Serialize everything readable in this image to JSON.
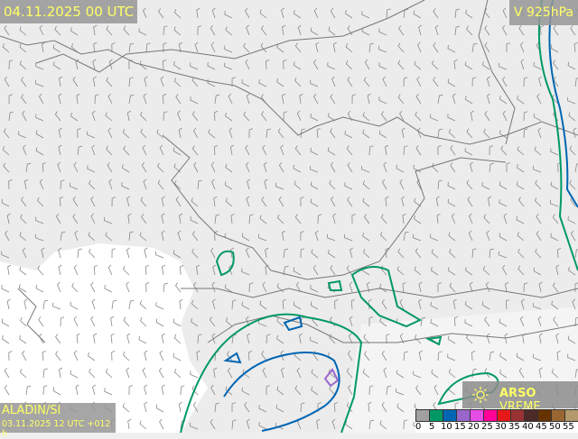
{
  "header": {
    "valid_time": "04.11.2025 00 UTC",
    "level": "V 925hPa"
  },
  "model": {
    "name": "ALADIN/SI",
    "run": "03.11.2025 12 UTC +012 h"
  },
  "brand": {
    "strong": "ARSO",
    "light": "VREME",
    "icon": "weather-sun-icon"
  },
  "legend": {
    "ticks": [
      "0",
      "5",
      "10",
      "15",
      "20",
      "25",
      "30",
      "35",
      "40",
      "45",
      "50",
      "55"
    ],
    "colors": [
      "#a0a0a0",
      "#009966",
      "#0066b3",
      "#9966cc",
      "#e64ce6",
      "#ff0099",
      "#e61919",
      "#993333",
      "#4d2a2a",
      "#663300",
      "#996633",
      "#b3996b"
    ]
  }
}
